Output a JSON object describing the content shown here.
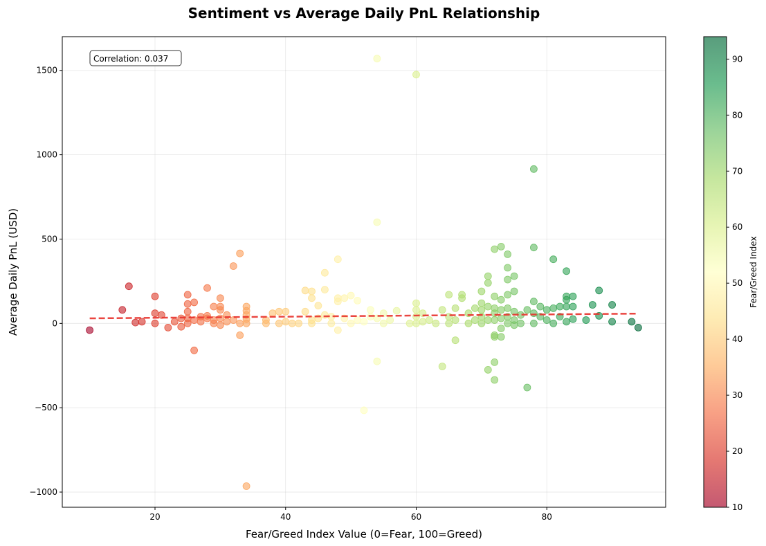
{
  "chart_data": {
    "type": "scatter",
    "title": "Sentiment vs Average Daily PnL Relationship",
    "xlabel": "Fear/Greed Index Value (0=Fear, 100=Greed)",
    "ylabel": "Average Daily PnL (USD)",
    "xlim": [
      5.8,
      98.2
    ],
    "ylim": [
      -1090,
      1700
    ],
    "xticks": [
      20,
      40,
      60,
      80
    ],
    "yticks": [
      -1000,
      -500,
      0,
      500,
      1000,
      1500
    ],
    "ytick_labels": [
      "−1000",
      "−500",
      "0",
      "500",
      "1000",
      "1500"
    ],
    "grid": true,
    "annotation": "Correlation: 0.037",
    "trendline": {
      "x": [
        10,
        94
      ],
      "y": [
        30,
        58
      ],
      "color": "#e8322b",
      "style": "dashed"
    },
    "colorbar": {
      "label": "Fear/Greed Index",
      "range": [
        10,
        94
      ],
      "ticks": [
        10,
        20,
        30,
        40,
        50,
        60,
        70,
        80,
        90
      ],
      "colormap": "RdYlGn",
      "colors": [
        "#a50026",
        "#d73027",
        "#f46d43",
        "#fdae61",
        "#fee08b",
        "#ffffbf",
        "#d9ef8b",
        "#a6d96a",
        "#66bd63",
        "#1a9850",
        "#006837"
      ]
    },
    "points": [
      [
        10,
        -40
      ],
      [
        15,
        80
      ],
      [
        16,
        220
      ],
      [
        17,
        5
      ],
      [
        18,
        10
      ],
      [
        20,
        160
      ],
      [
        20,
        60
      ],
      [
        20,
        0
      ],
      [
        21,
        50
      ],
      [
        22,
        -25
      ],
      [
        23,
        10
      ],
      [
        24,
        30
      ],
      [
        24,
        -20
      ],
      [
        25,
        170
      ],
      [
        25,
        115
      ],
      [
        25,
        70
      ],
      [
        25,
        30
      ],
      [
        25,
        0
      ],
      [
        26,
        125
      ],
      [
        26,
        20
      ],
      [
        26,
        -160
      ],
      [
        27,
        40
      ],
      [
        27,
        10
      ],
      [
        28,
        210
      ],
      [
        28,
        45
      ],
      [
        28,
        30
      ],
      [
        29,
        100
      ],
      [
        29,
        20
      ],
      [
        29,
        0
      ],
      [
        30,
        150
      ],
      [
        30,
        100
      ],
      [
        30,
        80
      ],
      [
        30,
        30
      ],
      [
        30,
        -10
      ],
      [
        31,
        50
      ],
      [
        31,
        10
      ],
      [
        32,
        340
      ],
      [
        32,
        20
      ],
      [
        33,
        415
      ],
      [
        33,
        0
      ],
      [
        33,
        -70
      ],
      [
        34,
        100
      ],
      [
        34,
        75
      ],
      [
        34,
        50
      ],
      [
        34,
        25
      ],
      [
        34,
        0
      ],
      [
        34,
        -965
      ],
      [
        37,
        20
      ],
      [
        37,
        0
      ],
      [
        38,
        60
      ],
      [
        39,
        70
      ],
      [
        39,
        0
      ],
      [
        40,
        70
      ],
      [
        40,
        10
      ],
      [
        41,
        0
      ],
      [
        42,
        0
      ],
      [
        43,
        195
      ],
      [
        43,
        70
      ],
      [
        44,
        190
      ],
      [
        44,
        150
      ],
      [
        44,
        20
      ],
      [
        44,
        0
      ],
      [
        45,
        105
      ],
      [
        45,
        30
      ],
      [
        46,
        300
      ],
      [
        46,
        200
      ],
      [
        46,
        50
      ],
      [
        47,
        40
      ],
      [
        47,
        0
      ],
      [
        48,
        380
      ],
      [
        48,
        150
      ],
      [
        48,
        130
      ],
      [
        48,
        -40
      ],
      [
        49,
        150
      ],
      [
        49,
        30
      ],
      [
        50,
        165
      ],
      [
        50,
        0
      ],
      [
        51,
        135
      ],
      [
        51,
        20
      ],
      [
        52,
        -515
      ],
      [
        52,
        10
      ],
      [
        53,
        80
      ],
      [
        53,
        40
      ],
      [
        54,
        1570
      ],
      [
        54,
        600
      ],
      [
        54,
        -225
      ],
      [
        54,
        30
      ],
      [
        55,
        60
      ],
      [
        55,
        0
      ],
      [
        56,
        20
      ],
      [
        57,
        75
      ],
      [
        59,
        0
      ],
      [
        60,
        1475
      ],
      [
        60,
        120
      ],
      [
        60,
        80
      ],
      [
        60,
        40
      ],
      [
        60,
        0
      ],
      [
        61,
        60
      ],
      [
        61,
        10
      ],
      [
        62,
        20
      ],
      [
        63,
        0
      ],
      [
        64,
        80
      ],
      [
        64,
        -255
      ],
      [
        65,
        170
      ],
      [
        65,
        40
      ],
      [
        65,
        0
      ],
      [
        66,
        90
      ],
      [
        66,
        -100
      ],
      [
        66,
        20
      ],
      [
        67,
        170
      ],
      [
        67,
        150
      ],
      [
        68,
        60
      ],
      [
        68,
        0
      ],
      [
        69,
        90
      ],
      [
        69,
        20
      ],
      [
        70,
        190
      ],
      [
        70,
        120
      ],
      [
        70,
        80
      ],
      [
        70,
        40
      ],
      [
        70,
        0
      ],
      [
        71,
        280
      ],
      [
        71,
        240
      ],
      [
        71,
        100
      ],
      [
        71,
        -275
      ],
      [
        71,
        20
      ],
      [
        72,
        440
      ],
      [
        72,
        160
      ],
      [
        72,
        90
      ],
      [
        72,
        60
      ],
      [
        72,
        20
      ],
      [
        72,
        -70
      ],
      [
        72,
        -80
      ],
      [
        72,
        -230
      ],
      [
        72,
        -335
      ],
      [
        73,
        455
      ],
      [
        73,
        140
      ],
      [
        73,
        80
      ],
      [
        73,
        30
      ],
      [
        73,
        -80
      ],
      [
        73,
        -30
      ],
      [
        74,
        410
      ],
      [
        74,
        330
      ],
      [
        74,
        260
      ],
      [
        74,
        170
      ],
      [
        74,
        90
      ],
      [
        74,
        40
      ],
      [
        74,
        0
      ],
      [
        75,
        280
      ],
      [
        75,
        190
      ],
      [
        75,
        70
      ],
      [
        75,
        20
      ],
      [
        75,
        -10
      ],
      [
        76,
        50
      ],
      [
        76,
        0
      ],
      [
        77,
        80
      ],
      [
        77,
        -380
      ],
      [
        78,
        915
      ],
      [
        78,
        450
      ],
      [
        78,
        130
      ],
      [
        78,
        60
      ],
      [
        78,
        0
      ],
      [
        79,
        100
      ],
      [
        79,
        40
      ],
      [
        80,
        80
      ],
      [
        80,
        20
      ],
      [
        81,
        380
      ],
      [
        81,
        90
      ],
      [
        81,
        0
      ],
      [
        82,
        100
      ],
      [
        82,
        40
      ],
      [
        83,
        310
      ],
      [
        83,
        160
      ],
      [
        83,
        140
      ],
      [
        83,
        100
      ],
      [
        83,
        10
      ],
      [
        84,
        160
      ],
      [
        84,
        100
      ],
      [
        84,
        25
      ],
      [
        86,
        20
      ],
      [
        87,
        110
      ],
      [
        88,
        195
      ],
      [
        88,
        45
      ],
      [
        90,
        110
      ],
      [
        90,
        10
      ],
      [
        93,
        10
      ],
      [
        94,
        -25
      ]
    ]
  }
}
